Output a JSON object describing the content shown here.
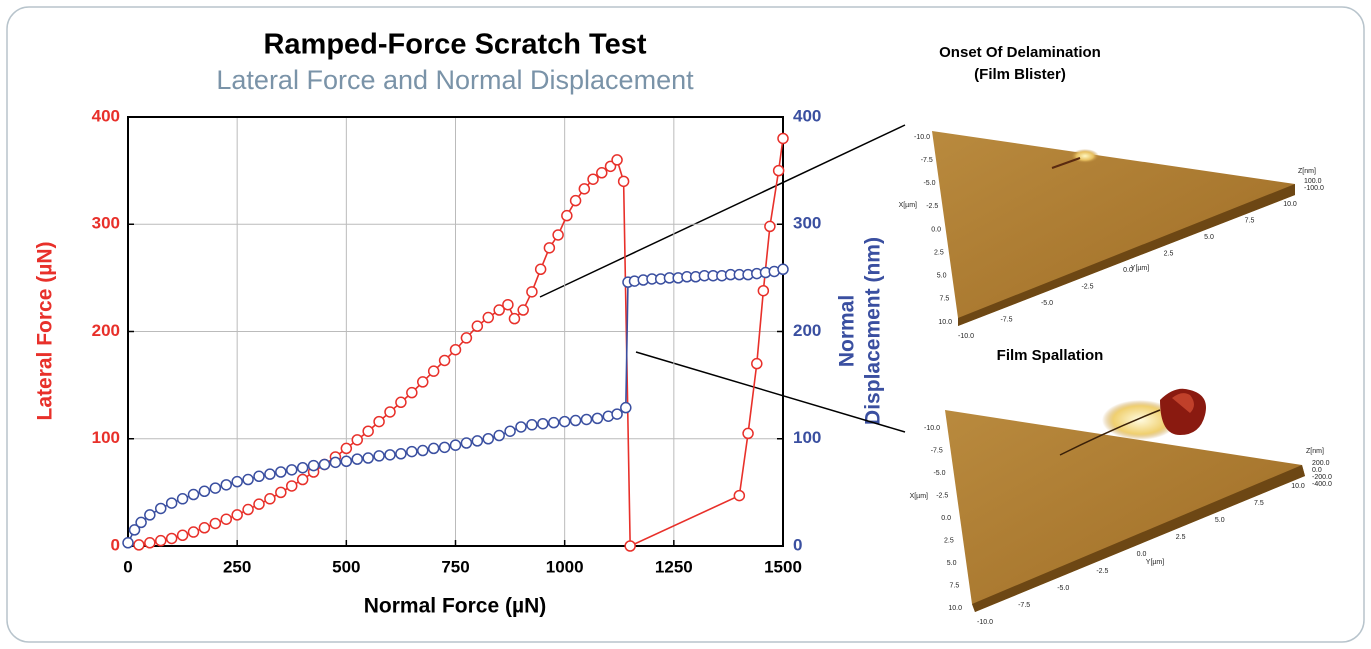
{
  "chart_data": {
    "type": "line",
    "title": "Ramped-Force Scratch Test",
    "subtitle": "Lateral Force and Normal Displacement",
    "xlabel": "Normal Force (µN)",
    "ylabel": "Lateral Force (µN)",
    "y2label": [
      "Normal",
      "Displacement (nm)"
    ],
    "xlim": [
      0,
      1500
    ],
    "xticks": [
      0,
      250,
      500,
      750,
      1000,
      1250,
      1500
    ],
    "ylim": [
      0,
      400
    ],
    "yticks": [
      0,
      100,
      200,
      300,
      400
    ],
    "y2lim": [
      0,
      400
    ],
    "y2ticks": [
      0,
      100,
      200,
      300,
      400
    ],
    "grid": true,
    "series": [
      {
        "color": "#e8302a",
        "axis": "y",
        "x": [
          25,
          50,
          75,
          100,
          125,
          150,
          175,
          200,
          225,
          250,
          275,
          300,
          325,
          350,
          375,
          400,
          425,
          450,
          475,
          500,
          525,
          550,
          575,
          600,
          625,
          650,
          675,
          700,
          725,
          750,
          775,
          800,
          825,
          850,
          870,
          885,
          905,
          925,
          945,
          965,
          985,
          1005,
          1025,
          1045,
          1065,
          1085,
          1105,
          1120,
          1135,
          1150,
          1400,
          1420,
          1440,
          1455,
          1470,
          1490,
          1500
        ],
        "values": [
          1,
          3,
          5,
          7,
          10,
          13,
          17,
          21,
          25,
          29,
          34,
          39,
          44,
          50,
          56,
          62,
          69,
          76,
          83,
          91,
          99,
          107,
          116,
          125,
          134,
          143,
          153,
          163,
          173,
          183,
          194,
          205,
          213,
          220,
          225,
          212,
          220,
          237,
          258,
          278,
          290,
          308,
          322,
          333,
          342,
          348,
          354,
          360,
          340,
          0,
          47,
          105,
          170,
          238,
          298,
          350,
          380
        ]
      },
      {
        "color": "#3a4fa0",
        "axis": "y2",
        "x": [
          0,
          15,
          30,
          50,
          75,
          100,
          125,
          150,
          175,
          200,
          225,
          250,
          275,
          300,
          325,
          350,
          375,
          400,
          425,
          450,
          475,
          500,
          525,
          550,
          575,
          600,
          625,
          650,
          675,
          700,
          725,
          750,
          775,
          800,
          825,
          850,
          875,
          900,
          925,
          950,
          975,
          1000,
          1025,
          1050,
          1075,
          1100,
          1120,
          1140,
          1145,
          1160,
          1180,
          1200,
          1220,
          1240,
          1260,
          1280,
          1300,
          1320,
          1340,
          1360,
          1380,
          1400,
          1420,
          1440,
          1460,
          1480,
          1500
        ],
        "values": [
          3,
          15,
          22,
          29,
          35,
          40,
          44,
          48,
          51,
          54,
          57,
          60,
          62,
          65,
          67,
          69,
          71,
          73,
          75,
          76,
          78,
          79,
          81,
          82,
          84,
          85,
          86,
          88,
          89,
          91,
          92,
          94,
          96,
          98,
          100,
          103,
          107,
          111,
          113,
          114,
          115,
          116,
          117,
          118,
          119,
          121,
          123,
          129,
          246,
          247,
          248,
          249,
          249,
          250,
          250,
          251,
          251,
          252,
          252,
          252,
          253,
          253,
          253,
          254,
          255,
          256,
          258
        ]
      }
    ]
  },
  "images": [
    {
      "title": [
        "Onset Of Delamination",
        "(Film Blister)"
      ],
      "x_label": "X[µm]",
      "y_label": "Y[µm]",
      "z_label": "Z[nm]",
      "x_ticks": [
        "-10.0",
        "-7.5",
        "-5.0",
        "-2.5",
        "0.0",
        "2.5",
        "5.0",
        "7.5",
        "10.0"
      ],
      "y_ticks": [
        "-10.0",
        "-7.5",
        "-5.0",
        "-2.5",
        "0.0",
        "2.5",
        "5.0",
        "7.5",
        "10.0"
      ],
      "z_ticks": [
        "100.0",
        "-100.0"
      ]
    },
    {
      "title": [
        "Film Spallation"
      ],
      "x_label": "X[µm]",
      "y_label": "Y[µm]",
      "z_label": "Z[nm]",
      "x_ticks": [
        "-10.0",
        "-7.5",
        "-5.0",
        "-2.5",
        "0.0",
        "2.5",
        "5.0",
        "7.5",
        "10.0"
      ],
      "y_ticks": [
        "-10.0",
        "-7.5",
        "-5.0",
        "-2.5",
        "0.0",
        "2.5",
        "5.0",
        "7.5",
        "10.0"
      ],
      "z_ticks": [
        "200.0",
        "0.0",
        "-200.0",
        "-400.0"
      ]
    }
  ]
}
